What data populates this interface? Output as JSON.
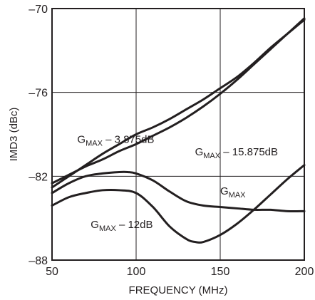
{
  "chart_data": {
    "type": "line",
    "title": "",
    "xlabel": "FREQUENCY (MHz)",
    "ylabel": "IMD3 (dBc)",
    "xlim": [
      50,
      200
    ],
    "ylim": [
      -88,
      -70
    ],
    "x_ticks": [
      50,
      100,
      150,
      200
    ],
    "x_tick_labels": [
      "50",
      "100",
      "150",
      "200"
    ],
    "y_ticks": [
      -88,
      -82,
      -76,
      -70
    ],
    "y_tick_labels": [
      "–88",
      "–82",
      "–76",
      "–70"
    ],
    "grid": true,
    "line_color": "#231f20",
    "series": [
      {
        "name": "GMAX – 3.875dB",
        "x": [
          50,
          60,
          70,
          80,
          90,
          100,
          110,
          120,
          130,
          140,
          150,
          160,
          170,
          180,
          190,
          200
        ],
        "values": [
          -82.8,
          -82.0,
          -81.2,
          -80.4,
          -79.7,
          -79.0,
          -78.5,
          -77.9,
          -77.2,
          -76.5,
          -75.7,
          -74.9,
          -73.9,
          -72.8,
          -71.8,
          -70.8
        ]
      },
      {
        "name": "GMAX – 15.875dB",
        "x": [
          50,
          60,
          70,
          80,
          90,
          100,
          110,
          120,
          130,
          140,
          150,
          160,
          170,
          180,
          190,
          200
        ],
        "values": [
          -82.5,
          -81.9,
          -81.3,
          -80.8,
          -80.2,
          -79.7,
          -79.1,
          -78.5,
          -77.8,
          -77.0,
          -76.1,
          -75.1,
          -74.0,
          -72.9,
          -71.8,
          -70.7
        ]
      },
      {
        "name": "GMAX",
        "x": [
          50,
          60,
          70,
          80,
          90,
          95,
          100,
          110,
          120,
          130,
          140,
          150,
          160,
          170,
          180,
          190,
          200
        ],
        "values": [
          -83.2,
          -82.5,
          -82.0,
          -81.8,
          -81.7,
          -81.7,
          -81.8,
          -82.3,
          -83.1,
          -83.8,
          -84.1,
          -84.2,
          -84.3,
          -84.4,
          -84.4,
          -84.5,
          -84.5
        ]
      },
      {
        "name": "GMAX – 12dB",
        "x": [
          50,
          60,
          70,
          80,
          90,
          100,
          110,
          120,
          130,
          135,
          140,
          150,
          160,
          170,
          180,
          190,
          200
        ],
        "values": [
          -84.1,
          -83.5,
          -83.2,
          -83.0,
          -83.0,
          -83.2,
          -84.2,
          -85.6,
          -86.5,
          -86.7,
          -86.7,
          -86.2,
          -85.4,
          -84.4,
          -83.3,
          -82.2,
          -81.2
        ]
      }
    ],
    "annotations": [
      {
        "main": "G",
        "sub": "MAX",
        "suffix": " – 3.875dB",
        "at": [
          65,
          -79.6
        ]
      },
      {
        "main": "G",
        "sub": "MAX",
        "suffix": " – 15.875dB",
        "at": [
          135,
          -80.5
        ]
      },
      {
        "main": "G",
        "sub": "MAX",
        "suffix": "",
        "at": [
          150,
          -83.3
        ]
      },
      {
        "main": "G",
        "sub": "MAX",
        "suffix": " – 12dB",
        "at": [
          73,
          -85.7
        ]
      }
    ]
  }
}
